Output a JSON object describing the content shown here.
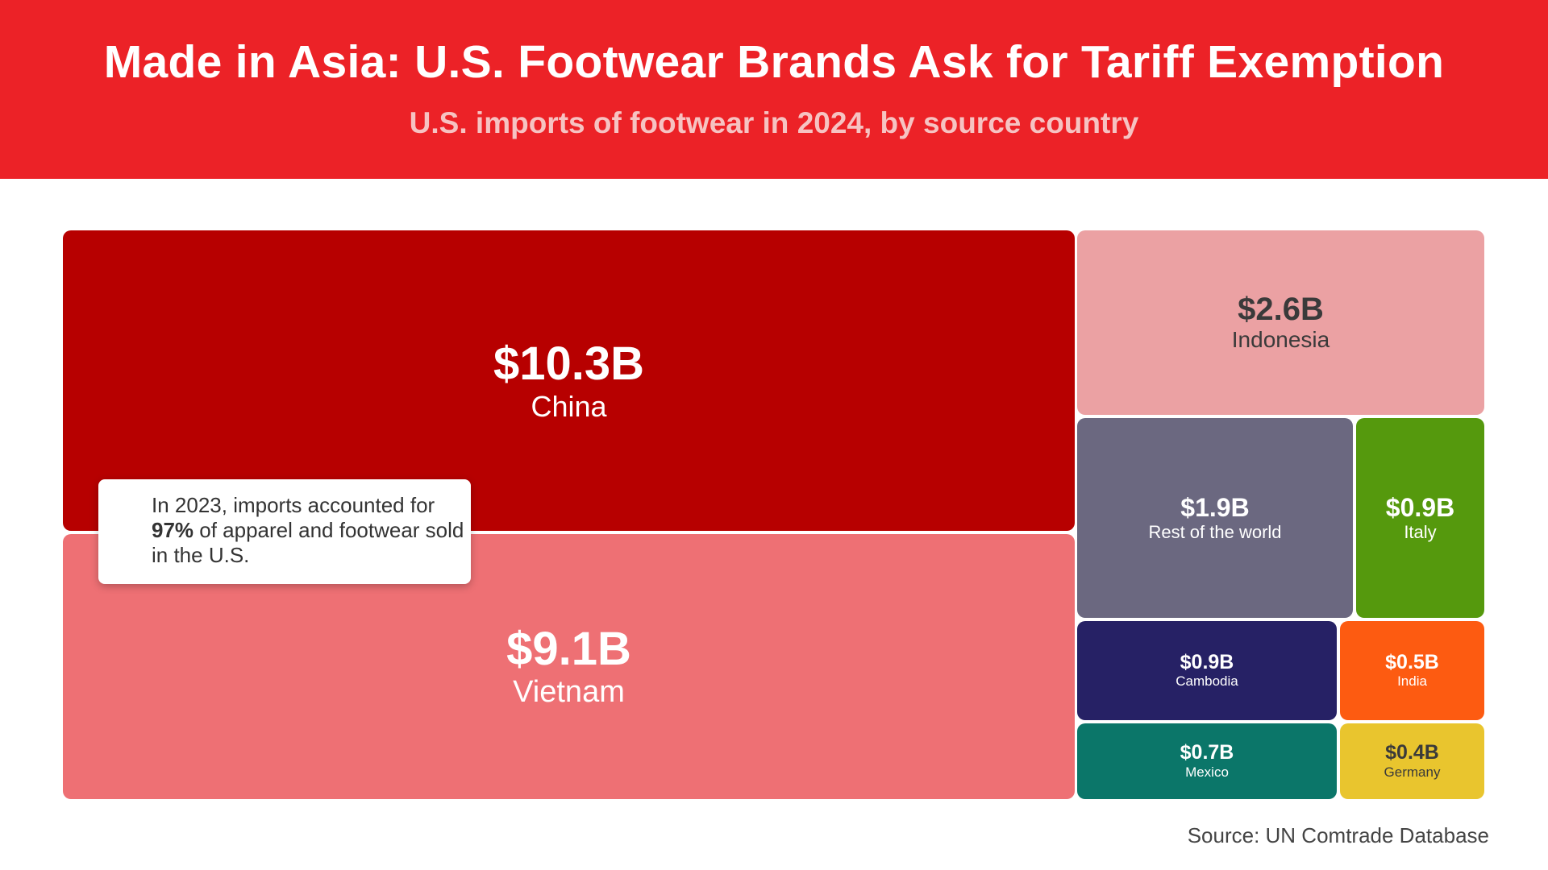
{
  "header": {
    "title": "Made in Asia: U.S. Footwear Brands Ask for Tariff Exemption",
    "subtitle": "U.S. imports of footwear in 2024, by source country"
  },
  "colors": {
    "header_bg": "#ec2227",
    "China": "#b70000",
    "Vietnam": "#ee7074",
    "Indonesia": "#eba1a3",
    "Rest of the world": "#6b6880",
    "Italy": "#55990d",
    "Cambodia": "#262165",
    "India": "#fd5b11",
    "Mexico": "#0b7669",
    "Germany": "#e9c52e"
  },
  "chart_data": {
    "type": "treemap",
    "unit": "$B",
    "items": [
      {
        "label": "China",
        "value": 10.3,
        "value_text": "$10.3B"
      },
      {
        "label": "Vietnam",
        "value": 9.1,
        "value_text": "$9.1B"
      },
      {
        "label": "Indonesia",
        "value": 2.6,
        "value_text": "$2.6B"
      },
      {
        "label": "Rest of the world",
        "value": 1.9,
        "value_text": "$1.9B"
      },
      {
        "label": "Italy",
        "value": 0.9,
        "value_text": "$0.9B"
      },
      {
        "label": "Cambodia",
        "value": 0.9,
        "value_text": "$0.9B"
      },
      {
        "label": "India",
        "value": 0.5,
        "value_text": "$0.5B"
      },
      {
        "label": "Mexico",
        "value": 0.7,
        "value_text": "$0.7B"
      },
      {
        "label": "Germany",
        "value": 0.4,
        "value_text": "$0.4B"
      }
    ]
  },
  "callout": {
    "text_before": "In 2023, imports accounted for ",
    "highlight": "97%",
    "text_after": " of apparel and footwear sold in the U.S."
  },
  "source": "Source: UN Comtrade Database"
}
